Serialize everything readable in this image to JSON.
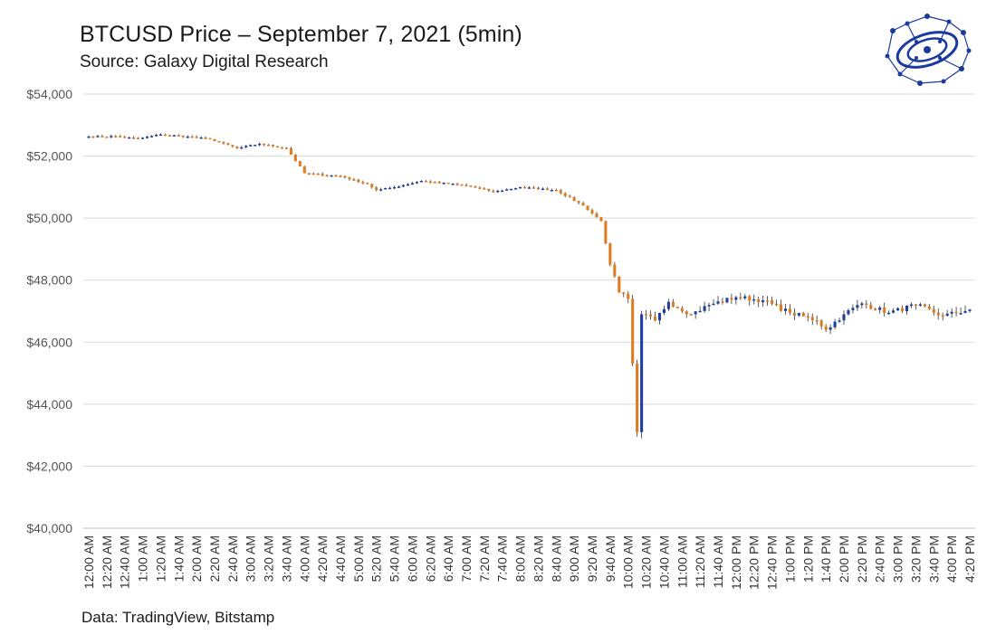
{
  "header": {
    "title": "BTCUSD Price – September 7, 2021 (5min)",
    "subtitle": "Source: Galaxy Digital Research"
  },
  "footer": {
    "note": "Data: TradingView, Bitstamp"
  },
  "logo": {
    "icon": "galaxy-network-icon",
    "color": "#1b3a9e"
  },
  "chart_data": {
    "type": "candlestick",
    "title": "BTCUSD Price – September 7, 2021 (5min)",
    "ylim": [
      40000,
      54000
    ],
    "y_ticks": [
      "$40,000",
      "$42,000",
      "$44,000",
      "$46,000",
      "$48,000",
      "$50,000",
      "$52,000",
      "$54,000"
    ],
    "y_tick_values": [
      40000,
      42000,
      44000,
      46000,
      48000,
      50000,
      52000,
      54000
    ],
    "x_ticks": [
      "12:00 AM",
      "12:20 AM",
      "12:40 AM",
      "1:00 AM",
      "1:20 AM",
      "1:40 AM",
      "2:00 AM",
      "2:20 AM",
      "2:40 AM",
      "3:00 AM",
      "3:20 AM",
      "3:40 AM",
      "4:00 AM",
      "4:20 AM",
      "4:40 AM",
      "5:00 AM",
      "5:20 AM",
      "5:40 AM",
      "6:00 AM",
      "6:20 AM",
      "6:40 AM",
      "7:00 AM",
      "7:20 AM",
      "7:40 AM",
      "8:00 AM",
      "8:20 AM",
      "8:40 AM",
      "9:00 AM",
      "9:20 AM",
      "9:40 AM",
      "10:00 AM",
      "10:20 AM",
      "10:40 AM",
      "11:00 AM",
      "11:20 AM",
      "11:40 AM",
      "12:00 PM",
      "12:20 PM",
      "12:40 PM",
      "1:00 PM",
      "1:20 PM",
      "1:40 PM",
      "2:00 PM",
      "2:20 PM",
      "2:40 PM",
      "3:00 PM",
      "3:20 PM",
      "3:40 PM",
      "4:00 PM",
      "4:20 PM"
    ],
    "interval_minutes": 5,
    "up_color": "#1f3f9e",
    "down_color": "#e07b20",
    "grid": true,
    "close_anchors": [
      [
        0,
        52630
      ],
      [
        6,
        52640
      ],
      [
        11,
        52560
      ],
      [
        16,
        52700
      ],
      [
        22,
        52630
      ],
      [
        27,
        52550
      ],
      [
        33,
        52250
      ],
      [
        38,
        52400
      ],
      [
        44,
        52250
      ],
      [
        48,
        51450
      ],
      [
        56,
        51350
      ],
      [
        62,
        51100
      ],
      [
        64,
        50900
      ],
      [
        68,
        51000
      ],
      [
        74,
        51200
      ],
      [
        84,
        51050
      ],
      [
        90,
        50850
      ],
      [
        96,
        51000
      ],
      [
        104,
        50900
      ],
      [
        110,
        50400
      ],
      [
        114,
        49900
      ],
      [
        116,
        48500
      ],
      [
        118,
        47600
      ],
      [
        120,
        47400
      ],
      [
        122,
        43100
      ],
      [
        123,
        46900
      ],
      [
        126,
        46700
      ],
      [
        129,
        47300
      ],
      [
        134,
        46900
      ],
      [
        138,
        47200
      ],
      [
        144,
        47450
      ],
      [
        150,
        47350
      ],
      [
        156,
        46950
      ],
      [
        162,
        46700
      ],
      [
        164,
        46400
      ],
      [
        168,
        46900
      ],
      [
        172,
        47250
      ],
      [
        178,
        46950
      ],
      [
        184,
        47200
      ],
      [
        190,
        46850
      ],
      [
        196,
        47050
      ]
    ]
  }
}
